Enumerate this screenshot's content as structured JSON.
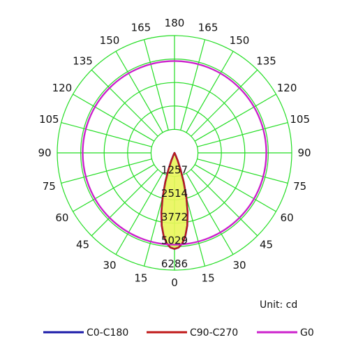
{
  "chart_data": {
    "type": "polar",
    "unit": "Unit: cd",
    "angle_labels": [
      {
        "deg": 180,
        "text": "180"
      },
      {
        "deg": 165,
        "text": "165"
      },
      {
        "deg": 150,
        "text": "150"
      },
      {
        "deg": 135,
        "text": "135"
      },
      {
        "deg": 120,
        "text": "120"
      },
      {
        "deg": 105,
        "text": "105"
      },
      {
        "deg": 90,
        "text": "90"
      },
      {
        "deg": 75,
        "text": "75"
      },
      {
        "deg": 60,
        "text": "60"
      },
      {
        "deg": 45,
        "text": "45"
      },
      {
        "deg": 30,
        "text": "30"
      },
      {
        "deg": 15,
        "text": "15"
      },
      {
        "deg": 0,
        "text": "0"
      }
    ],
    "radial_ticks": [
      1257,
      2514,
      3772,
      5029,
      6286
    ],
    "r_max": 6286,
    "grid_color": "#22dd22",
    "series": [
      {
        "name": "C0-C180",
        "color": "#1a1aa8",
        "points": [
          [
            0,
            5150
          ],
          [
            2.5,
            5080
          ],
          [
            5,
            4860
          ],
          [
            7.5,
            4480
          ],
          [
            10,
            3950
          ],
          [
            12.5,
            3250
          ],
          [
            15,
            2450
          ],
          [
            17.5,
            1650
          ],
          [
            20,
            950
          ],
          [
            22.5,
            450
          ],
          [
            25,
            150
          ],
          [
            27.5,
            30
          ],
          [
            30,
            0
          ]
        ]
      },
      {
        "name": "C90-C270",
        "color": "#c01818",
        "points": [
          [
            0,
            5150
          ],
          [
            2.5,
            5080
          ],
          [
            5,
            4860
          ],
          [
            7.5,
            4480
          ],
          [
            10,
            3950
          ],
          [
            12.5,
            3250
          ],
          [
            15,
            2450
          ],
          [
            17.5,
            1650
          ],
          [
            20,
            950
          ],
          [
            22.5,
            450
          ],
          [
            25,
            150
          ],
          [
            27.5,
            30
          ],
          [
            30,
            0
          ]
        ]
      },
      {
        "name": "G0",
        "color": "#cc22cc",
        "shape": "circle",
        "radius_fraction": 0.783
      }
    ],
    "legend": {
      "position": "bottom",
      "entries": [
        "C0-C180",
        "C90-C270",
        "G0"
      ]
    }
  }
}
